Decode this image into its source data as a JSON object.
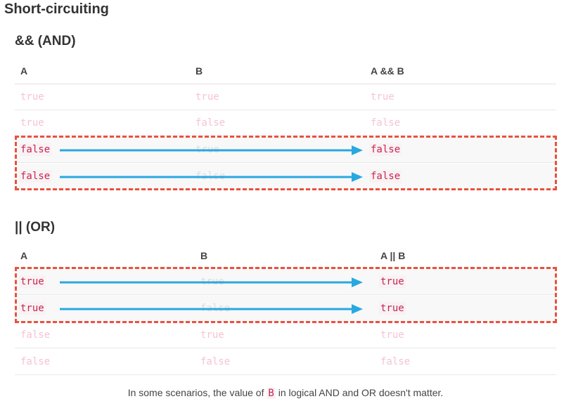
{
  "title": "Short-circuiting",
  "and_section": {
    "heading": "&& (AND)",
    "headers": [
      "A",
      "B",
      "A && B"
    ],
    "rows": [
      {
        "a": "true",
        "b": "true",
        "result": "true"
      },
      {
        "a": "true",
        "b": "false",
        "result": "false"
      },
      {
        "a": "false",
        "b": "true",
        "result": "false"
      },
      {
        "a": "false",
        "b": "false",
        "result": "false"
      }
    ]
  },
  "or_section": {
    "heading": "|| (OR)",
    "headers": [
      "A",
      "B",
      "A || B"
    ],
    "rows": [
      {
        "a": "true",
        "b": "true",
        "result": "true"
      },
      {
        "a": "true",
        "b": "false",
        "result": "true"
      },
      {
        "a": "false",
        "b": "true",
        "result": "true"
      },
      {
        "a": "false",
        "b": "false",
        "result": "false"
      }
    ]
  },
  "caption": {
    "before": "In some scenarios, the value of ",
    "code": "B",
    "after": " in logical AND and OR doesn't matter."
  },
  "colors": {
    "highlight_border": "#e8523f",
    "arrow": "#29a8e0",
    "code_text": "#c7254e"
  }
}
